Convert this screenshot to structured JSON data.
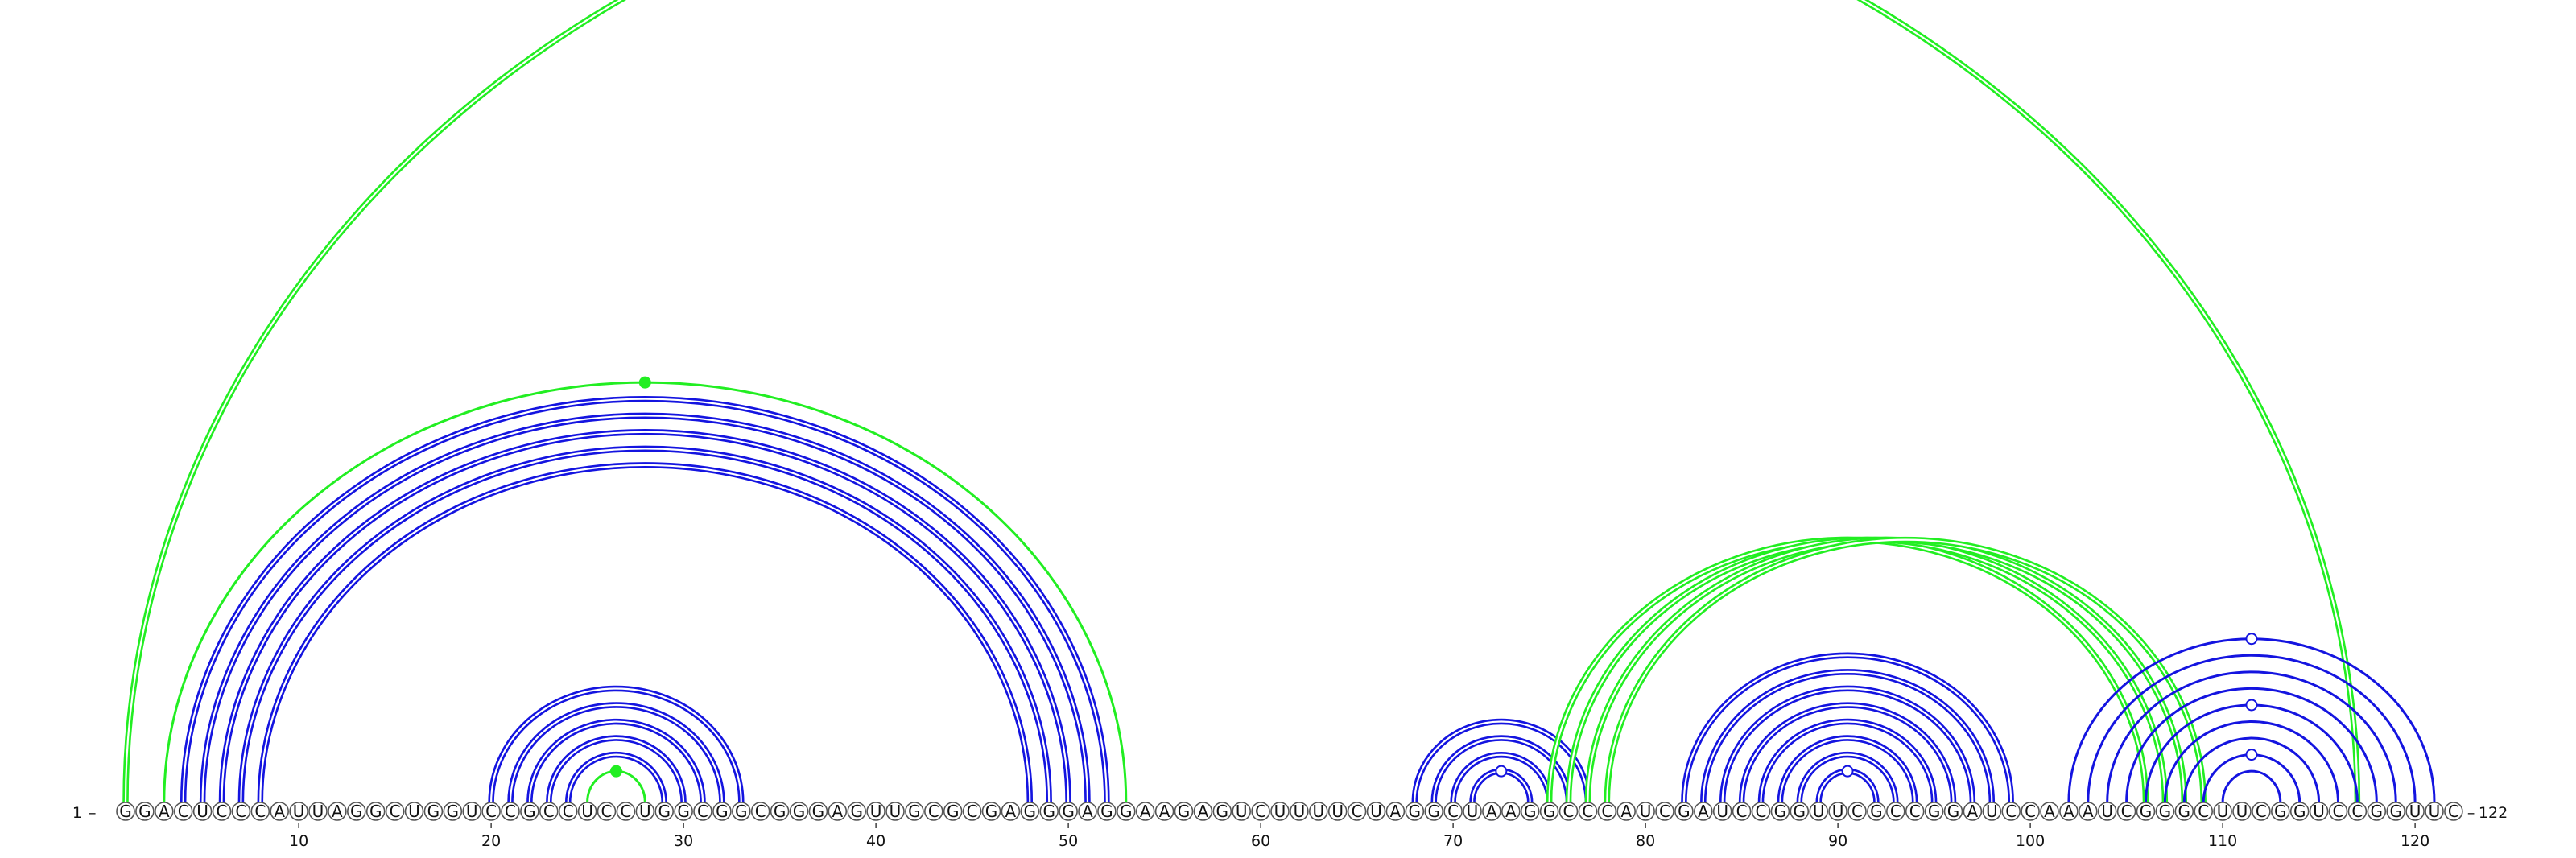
{
  "sequence": "GGACUCCCAUUAGGCUGGUCCGCCUCCUGGCGGCGGGAGUUGCGCGAGGGAGGAAGAGUCUUUUCUAGGCUAAGGCCCAUCGAUCCGGUUCGCCGGAUCCAAAUCGGGCUUCGGUCCGGUUC",
  "length": 122,
  "start_label": "1",
  "end_label": "122",
  "ticks": [
    10,
    20,
    30,
    40,
    50,
    60,
    70,
    80,
    90,
    100,
    110,
    120
  ],
  "colors": {
    "blue": "#1414e0",
    "green": "#22ee22",
    "circle_stroke": "#555555"
  },
  "arc_groups": [
    {
      "color": "green",
      "style": "double",
      "pairs": [
        [
          1,
          117
        ]
      ]
    },
    {
      "color": "green",
      "style": "single",
      "pairs": [
        [
          3,
          53
        ]
      ],
      "apex_marker": "filled"
    },
    {
      "color": "blue",
      "style": "double",
      "pairs": [
        [
          4,
          52
        ],
        [
          5,
          51
        ],
        [
          6,
          50
        ],
        [
          7,
          49
        ],
        [
          8,
          48
        ]
      ]
    },
    {
      "color": "blue",
      "style": "double",
      "pairs": [
        [
          20,
          33
        ],
        [
          21,
          32
        ],
        [
          22,
          31
        ],
        [
          23,
          30
        ],
        [
          24,
          29
        ]
      ]
    },
    {
      "color": "green",
      "style": "single",
      "pairs": [
        [
          25,
          28
        ]
      ],
      "apex_marker": "filled"
    },
    {
      "color": "blue",
      "style": "double",
      "pairs": [
        [
          68,
          77
        ],
        [
          69,
          76
        ],
        [
          70,
          75
        ],
        [
          71,
          74
        ]
      ],
      "apex_marker": "open"
    },
    {
      "color": "green",
      "style": "double",
      "pairs": [
        [
          75,
          106
        ],
        [
          76,
          107
        ],
        [
          77,
          108
        ],
        [
          78,
          109
        ]
      ]
    },
    {
      "color": "blue",
      "style": "double",
      "pairs": [
        [
          82,
          99
        ],
        [
          83,
          98
        ],
        [
          84,
          97
        ],
        [
          85,
          96
        ],
        [
          86,
          95
        ],
        [
          87,
          94
        ],
        [
          88,
          93
        ],
        [
          89,
          92
        ]
      ],
      "apex_marker": "open"
    },
    {
      "color": "blue",
      "style": "single",
      "pairs": [
        [
          102,
          121
        ],
        [
          103,
          120
        ],
        [
          104,
          119
        ],
        [
          105,
          118
        ],
        [
          106,
          117
        ],
        [
          107,
          116
        ],
        [
          108,
          115
        ],
        [
          109,
          114
        ],
        [
          110,
          113
        ]
      ],
      "apex_markers_open": [
        [
          102,
          121
        ],
        [
          106,
          117
        ],
        [
          109,
          114
        ]
      ]
    }
  ]
}
